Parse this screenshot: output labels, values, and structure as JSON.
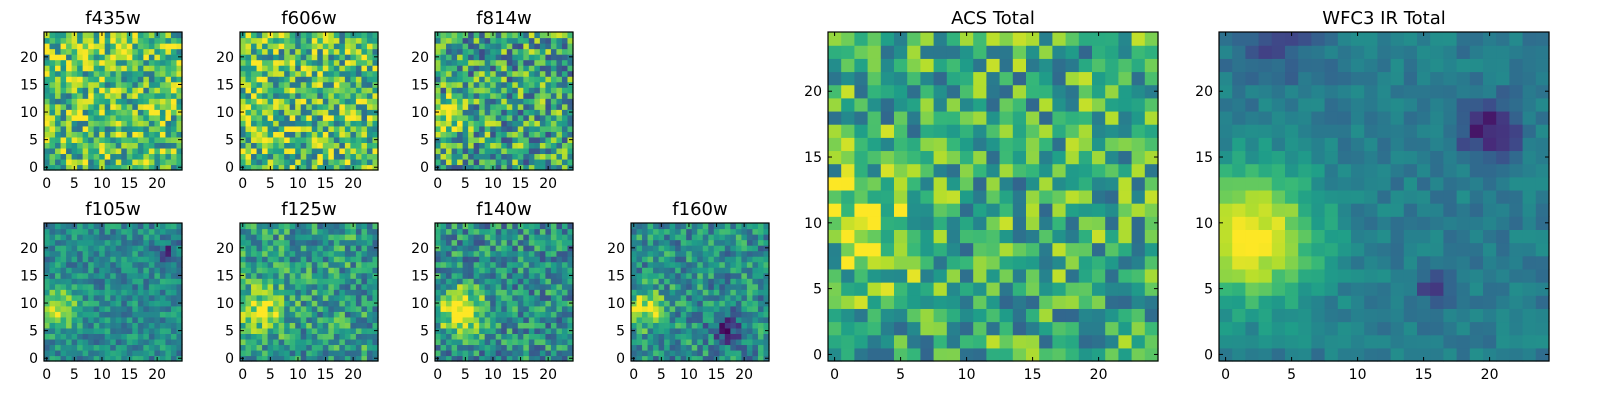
{
  "figure_label": "HST cutouts",
  "colors": {
    "low": "#440154",
    "mid": "#21918c",
    "high": "#fde725",
    "frame": "#000000"
  },
  "chart_data": [
    {
      "type": "heatmap",
      "title": "f435w",
      "xlim": [
        -0.5,
        24.5
      ],
      "ylim": [
        -0.5,
        24.5
      ],
      "xticks": [
        0,
        5,
        10,
        15,
        20
      ],
      "yticks": [
        0,
        5,
        10,
        15,
        20
      ],
      "grid": false,
      "background": 0.7,
      "noise": 0.34,
      "seed": 11,
      "blobs": [
        {
          "x": 13,
          "y": 20,
          "amp": 0.1,
          "sigma": 3
        }
      ]
    },
    {
      "type": "heatmap",
      "title": "f606w",
      "xlim": [
        -0.5,
        24.5
      ],
      "ylim": [
        -0.5,
        24.5
      ],
      "xticks": [
        0,
        5,
        10,
        15,
        20
      ],
      "yticks": [
        0,
        5,
        10,
        15,
        20
      ],
      "grid": false,
      "background": 0.7,
      "noise": 0.36,
      "seed": 23,
      "blobs": [
        {
          "x": 2,
          "y": 10,
          "amp": 0.18,
          "sigma": 2.5
        }
      ]
    },
    {
      "type": "heatmap",
      "title": "f814w",
      "xlim": [
        -0.5,
        24.5
      ],
      "ylim": [
        -0.5,
        24.5
      ],
      "xticks": [
        0,
        5,
        10,
        15,
        20
      ],
      "yticks": [
        0,
        5,
        10,
        15,
        20
      ],
      "grid": false,
      "background": 0.58,
      "noise": 0.36,
      "seed": 37,
      "blobs": [
        {
          "x": 2,
          "y": 9,
          "amp": 0.35,
          "sigma": 2.2
        }
      ]
    },
    {
      "type": "heatmap",
      "title": "f105w",
      "xlim": [
        -0.5,
        24.5
      ],
      "ylim": [
        -0.5,
        24.5
      ],
      "xticks": [
        0,
        5,
        10,
        15,
        20
      ],
      "yticks": [
        0,
        5,
        10,
        15,
        20
      ],
      "grid": false,
      "background": 0.48,
      "noise": 0.18,
      "seed": 41,
      "blobs": [
        {
          "x": 2,
          "y": 9,
          "amp": 0.45,
          "sigma": 2.5
        },
        {
          "x": 22,
          "y": 19,
          "amp": -0.3,
          "sigma": 1.5
        }
      ]
    },
    {
      "type": "heatmap",
      "title": "f125w",
      "xlim": [
        -0.5,
        24.5
      ],
      "ylim": [
        -0.5,
        24.5
      ],
      "xticks": [
        0,
        5,
        10,
        15,
        20
      ],
      "yticks": [
        0,
        5,
        10,
        15,
        20
      ],
      "grid": false,
      "background": 0.55,
      "noise": 0.26,
      "seed": 53,
      "blobs": [
        {
          "x": 3,
          "y": 9,
          "amp": 0.35,
          "sigma": 3
        }
      ]
    },
    {
      "type": "heatmap",
      "title": "f140w",
      "xlim": [
        -0.5,
        24.5
      ],
      "ylim": [
        -0.5,
        24.5
      ],
      "xticks": [
        0,
        5,
        10,
        15,
        20
      ],
      "yticks": [
        0,
        5,
        10,
        15,
        20
      ],
      "grid": false,
      "background": 0.5,
      "noise": 0.26,
      "seed": 67,
      "blobs": [
        {
          "x": 4,
          "y": 9,
          "amp": 0.5,
          "sigma": 3
        }
      ]
    },
    {
      "type": "heatmap",
      "title": "f160w",
      "xlim": [
        -0.5,
        24.5
      ],
      "ylim": [
        -0.5,
        24.5
      ],
      "xticks": [
        0,
        5,
        10,
        15,
        20
      ],
      "yticks": [
        0,
        5,
        10,
        15,
        20
      ],
      "grid": false,
      "background": 0.5,
      "noise": 0.24,
      "seed": 79,
      "blobs": [
        {
          "x": 2,
          "y": 9,
          "amp": 0.45,
          "sigma": 2.5
        },
        {
          "x": 17,
          "y": 5,
          "amp": -0.35,
          "sigma": 2
        }
      ]
    },
    {
      "type": "heatmap",
      "title": "ACS Total",
      "xlim": [
        -0.5,
        24.5
      ],
      "ylim": [
        -0.5,
        24.5
      ],
      "xticks": [
        0,
        5,
        10,
        15,
        20
      ],
      "yticks": [
        0,
        5,
        10,
        15,
        20
      ],
      "grid": false,
      "background": 0.62,
      "noise": 0.3,
      "seed": 91,
      "blobs": [
        {
          "x": 3,
          "y": 10,
          "amp": 0.25,
          "sigma": 3
        }
      ]
    },
    {
      "type": "heatmap",
      "title": "WFC3 IR Total",
      "xlim": [
        -0.5,
        24.5
      ],
      "ylim": [
        -0.5,
        24.5
      ],
      "xticks": [
        0,
        5,
        10,
        15,
        20
      ],
      "yticks": [
        0,
        5,
        10,
        15,
        20
      ],
      "grid": false,
      "background": 0.42,
      "noise": 0.08,
      "seed": 103,
      "blobs": [
        {
          "x": 2,
          "y": 9,
          "amp": 0.6,
          "sigma": 3.5
        },
        {
          "x": 20,
          "y": 17,
          "amp": -0.35,
          "sigma": 1.6
        },
        {
          "x": 4,
          "y": 24,
          "amp": -0.2,
          "sigma": 2
        },
        {
          "x": 16,
          "y": 5,
          "amp": -0.25,
          "sigma": 1
        }
      ]
    }
  ]
}
